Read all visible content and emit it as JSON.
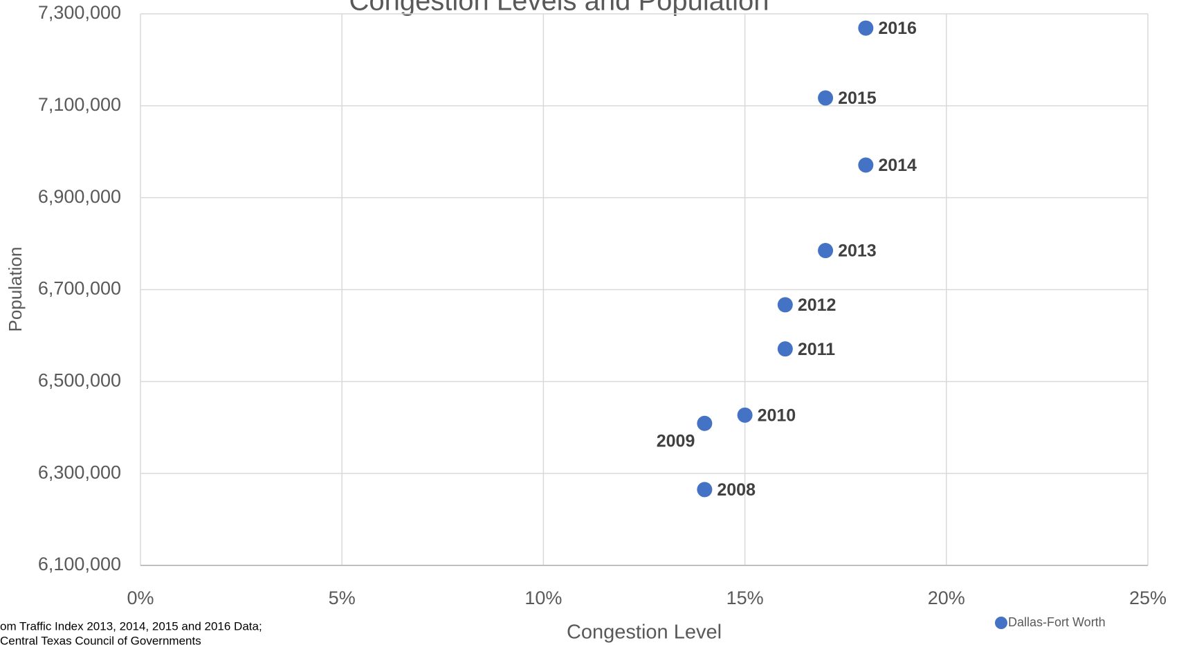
{
  "chart_data": {
    "type": "scatter",
    "title": "Congestion Levels and Population",
    "x_label": "Congestion Level",
    "y_label": "Population",
    "footnote": [
      "om Traffic Index 2013, 2014, 2015 and 2016 Data;",
      "Central Texas Council of Governments"
    ],
    "series": [
      {
        "name": "Dallas-Fort Worth",
        "color": "#4472c4",
        "x": [
          14,
          14,
          15,
          16,
          16,
          17,
          18,
          17,
          18
        ],
        "values": [
          6265000,
          6409000,
          6427000,
          6571000,
          6667000,
          6785000,
          6971000,
          7117000,
          7269000
        ],
        "labels": [
          "2008",
          "2009",
          "2010",
          "2011",
          "2012",
          "2013",
          "2014",
          "2015",
          "2016"
        ]
      }
    ],
    "xlim": [
      0,
      25
    ],
    "xticks": [
      {
        "value": 0,
        "label": "0%"
      },
      {
        "value": 5,
        "label": "5%"
      },
      {
        "value": 10,
        "label": "10%"
      },
      {
        "value": 15,
        "label": "15%"
      },
      {
        "value": 20,
        "label": "20%"
      },
      {
        "value": 25,
        "label": "25%"
      }
    ],
    "ylim": [
      6100000,
      7300000
    ],
    "yticks": [
      {
        "value": 6100000,
        "label": "6,100,000"
      },
      {
        "value": 6300000,
        "label": "6,300,000"
      },
      {
        "value": 6500000,
        "label": "6,500,000"
      },
      {
        "value": 6700000,
        "label": "6,700,000"
      },
      {
        "value": 6900000,
        "label": "6,900,000"
      },
      {
        "value": 7100000,
        "label": "7,100,000"
      },
      {
        "value": 7300000,
        "label": "7,300,000"
      }
    ],
    "grid": true,
    "legend": "bottom-right"
  }
}
